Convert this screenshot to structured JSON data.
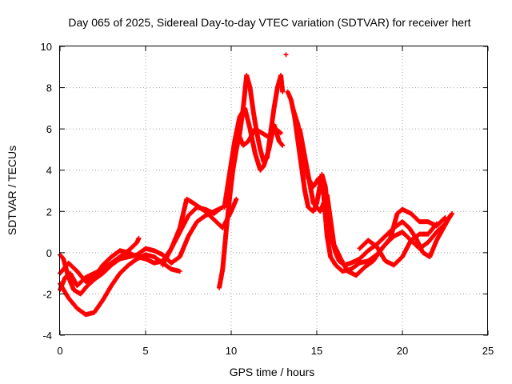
{
  "chart_data": {
    "type": "scatter",
    "title": "Day 065 of 2025, Sidereal Day-to-day VTEC variation (SDTVAR) for receiver hert",
    "xlabel": "GPS time / hours",
    "ylabel": "SDTVAR / TECUs",
    "xlim": [
      0,
      25
    ],
    "ylim": [
      -4,
      10
    ],
    "xticks": [
      "0",
      "5",
      "10",
      "15",
      "20",
      "25"
    ],
    "yticks": [
      "-4",
      "-2",
      "0",
      "2",
      "4",
      "6",
      "8",
      "10"
    ],
    "grid": true,
    "marker": "plus",
    "color": "#ff0000",
    "series": [
      {
        "name": "SDTVAR",
        "traces": [
          [
            [
              0,
              -1.8
            ],
            [
              0.3,
              -1.2
            ],
            [
              0.6,
              -1.0
            ],
            [
              1.0,
              -1.6
            ],
            [
              1.5,
              -1.2
            ],
            [
              2.0,
              -1.0
            ],
            [
              2.5,
              -0.8
            ],
            [
              3.0,
              -0.5
            ],
            [
              3.5,
              -0.2
            ],
            [
              4.0,
              0.1
            ],
            [
              4.5,
              0.5
            ],
            [
              4.6,
              0.7
            ]
          ],
          [
            [
              0,
              -1.5
            ],
            [
              0.5,
              -2.2
            ],
            [
              1.0,
              -2.7
            ],
            [
              1.5,
              -3.0
            ],
            [
              2.0,
              -2.9
            ],
            [
              2.5,
              -2.3
            ],
            [
              3.0,
              -1.6
            ],
            [
              3.5,
              -1.0
            ],
            [
              4.0,
              -0.6
            ],
            [
              4.5,
              -0.3
            ],
            [
              5.0,
              -0.1
            ],
            [
              5.5,
              -0.2
            ],
            [
              6.0,
              -0.5
            ],
            [
              6.5,
              -0.8
            ],
            [
              7.0,
              -0.9
            ]
          ],
          [
            [
              0,
              -1.0
            ],
            [
              0.5,
              -0.5
            ],
            [
              1.0,
              -0.9
            ],
            [
              1.5,
              -1.4
            ],
            [
              2.0,
              -1.2
            ],
            [
              2.5,
              -0.6
            ],
            [
              3.0,
              -0.2
            ],
            [
              3.5,
              0.1
            ],
            [
              4.0,
              0.0
            ],
            [
              4.5,
              -0.2
            ],
            [
              5.0,
              -0.3
            ],
            [
              5.5,
              -0.5
            ],
            [
              6.0,
              -0.4
            ],
            [
              6.5,
              0.2
            ],
            [
              7.0,
              1.2
            ],
            [
              7.4,
              2.6
            ],
            [
              7.8,
              2.4
            ],
            [
              8.5,
              2.0
            ],
            [
              9.0,
              1.6
            ],
            [
              9.5,
              1.2
            ],
            [
              10.0,
              2.0
            ],
            [
              10.3,
              2.6
            ]
          ],
          [
            [
              0,
              -0.1
            ],
            [
              0.2,
              -0.3
            ],
            [
              0.5,
              -1.2
            ],
            [
              0.8,
              -1.8
            ],
            [
              1.2,
              -2.0
            ],
            [
              1.6,
              -1.6
            ],
            [
              2.0,
              -1.3
            ],
            [
              2.5,
              -1.0
            ],
            [
              3.0,
              -0.6
            ],
            [
              3.5,
              -0.3
            ],
            [
              4.0,
              -0.2
            ],
            [
              4.5,
              -0.1
            ],
            [
              5.0,
              0.2
            ],
            [
              5.5,
              0.1
            ],
            [
              6.0,
              -0.1
            ],
            [
              6.5,
              -0.5
            ],
            [
              7.0,
              -0.2
            ],
            [
              7.5,
              0.8
            ],
            [
              8.0,
              1.5
            ],
            [
              8.5,
              1.8
            ],
            [
              9.0,
              2.0
            ],
            [
              9.5,
              2.2
            ]
          ],
          [
            [
              6.0,
              -0.6
            ],
            [
              6.5,
              0.2
            ],
            [
              7.0,
              1.0
            ],
            [
              7.5,
              1.8
            ],
            [
              8.0,
              2.2
            ],
            [
              8.5,
              2.1
            ],
            [
              9.0,
              1.9
            ],
            [
              9.3,
              2.1
            ]
          ],
          [
            [
              9.3,
              -1.7
            ],
            [
              9.5,
              -0.8
            ],
            [
              9.7,
              1.0
            ],
            [
              9.9,
              2.6
            ],
            [
              10.1,
              4.0
            ],
            [
              10.3,
              5.0
            ],
            [
              10.5,
              5.8
            ],
            [
              10.7,
              7.0
            ],
            [
              10.9,
              8.6
            ],
            [
              11.1,
              8.0
            ],
            [
              11.3,
              6.8
            ],
            [
              11.5,
              5.8
            ],
            [
              11.7,
              5.0
            ],
            [
              11.9,
              4.4
            ],
            [
              12.1,
              4.6
            ],
            [
              12.3,
              5.8
            ],
            [
              12.5,
              7.0
            ],
            [
              12.7,
              8.0
            ],
            [
              12.9,
              8.6
            ],
            [
              13.0,
              7.8
            ]
          ],
          [
            [
              9.6,
              2.2
            ],
            [
              9.9,
              3.8
            ],
            [
              10.2,
              5.4
            ],
            [
              10.5,
              6.6
            ],
            [
              10.8,
              7.0
            ],
            [
              11.1,
              6.0
            ],
            [
              11.4,
              4.8
            ],
            [
              11.7,
              4.0
            ],
            [
              11.9,
              4.2
            ],
            [
              12.2,
              5.0
            ],
            [
              12.5,
              6.2
            ],
            [
              12.8,
              5.4
            ],
            [
              13.0,
              5.2
            ]
          ],
          [
            [
              9.8,
              3.2
            ],
            [
              10.1,
              4.8
            ],
            [
              10.4,
              5.8
            ],
            [
              10.7,
              5.2
            ],
            [
              11.0,
              5.4
            ],
            [
              11.4,
              6.0
            ],
            [
              11.8,
              5.8
            ],
            [
              12.2,
              5.6
            ],
            [
              12.6,
              6.0
            ],
            [
              12.9,
              5.8
            ]
          ],
          [
            [
              13.3,
              7.8
            ],
            [
              13.5,
              7.4
            ],
            [
              13.7,
              6.6
            ],
            [
              13.9,
              5.4
            ],
            [
              14.1,
              4.2
            ],
            [
              14.3,
              3.0
            ],
            [
              14.5,
              2.2
            ],
            [
              14.8,
              2.0
            ],
            [
              15.0,
              2.4
            ],
            [
              15.3,
              3.8
            ],
            [
              15.5,
              3.2
            ],
            [
              15.7,
              1.6
            ],
            [
              15.9,
              0.6
            ],
            [
              16.1,
              0.0
            ],
            [
              16.3,
              -0.4
            ],
            [
              16.6,
              -0.6
            ],
            [
              17.0,
              -0.5
            ],
            [
              17.5,
              -0.3
            ],
            [
              18.0,
              0.1
            ],
            [
              18.5,
              0.4
            ],
            [
              19.0,
              0.8
            ],
            [
              19.5,
              1.2
            ],
            [
              20.0,
              1.5
            ],
            [
              20.4,
              1.2
            ],
            [
              20.8,
              0.7
            ],
            [
              21.2,
              0.0
            ],
            [
              21.6,
              -0.2
            ],
            [
              22.0,
              0.6
            ],
            [
              22.4,
              1.2
            ],
            [
              22.8,
              1.8
            ]
          ],
          [
            [
              13.6,
              7.0
            ],
            [
              13.9,
              6.2
            ],
            [
              14.2,
              4.8
            ],
            [
              14.5,
              3.6
            ],
            [
              14.8,
              3.2
            ],
            [
              15.1,
              3.6
            ],
            [
              15.4,
              2.8
            ],
            [
              15.6,
              0.8
            ],
            [
              15.8,
              -0.2
            ],
            [
              16.1,
              -0.6
            ],
            [
              16.5,
              -0.9
            ],
            [
              17.0,
              -0.8
            ],
            [
              17.5,
              -0.5
            ],
            [
              18.0,
              -0.4
            ],
            [
              18.5,
              -0.1
            ],
            [
              19.0,
              0.4
            ],
            [
              19.5,
              0.8
            ],
            [
              20.0,
              1.0
            ],
            [
              20.5,
              0.6
            ],
            [
              21.0,
              0.2
            ],
            [
              21.5,
              0.5
            ],
            [
              22.0,
              1.0
            ],
            [
              22.5,
              1.4
            ],
            [
              22.9,
              1.9
            ]
          ],
          [
            [
              14.0,
              6.0
            ],
            [
              14.4,
              4.2
            ],
            [
              14.8,
              2.4
            ],
            [
              15.2,
              2.0
            ],
            [
              15.6,
              2.8
            ],
            [
              16.0,
              0.4
            ],
            [
              16.4,
              -0.3
            ],
            [
              16.8,
              -0.9
            ],
            [
              17.3,
              -1.1
            ],
            [
              17.8,
              -0.7
            ],
            [
              18.3,
              -0.4
            ],
            [
              18.8,
              0.2
            ],
            [
              19.3,
              0.7
            ],
            [
              19.7,
              1.9
            ],
            [
              20.0,
              2.1
            ],
            [
              20.5,
              1.9
            ],
            [
              21.0,
              1.5
            ],
            [
              21.5,
              1.5
            ],
            [
              22.0,
              1.3
            ],
            [
              22.5,
              1.7
            ]
          ],
          [
            [
              17.5,
              0.2
            ],
            [
              18.0,
              0.6
            ],
            [
              18.5,
              0.3
            ],
            [
              19.0,
              -0.4
            ],
            [
              19.5,
              -0.6
            ],
            [
              20.0,
              -0.2
            ],
            [
              20.5,
              0.6
            ],
            [
              21.0,
              0.9
            ],
            [
              21.5,
              0.9
            ],
            [
              22.0,
              1.4
            ]
          ]
        ],
        "outliers": [
          [
            13.2,
            9.6
          ]
        ]
      }
    ]
  }
}
